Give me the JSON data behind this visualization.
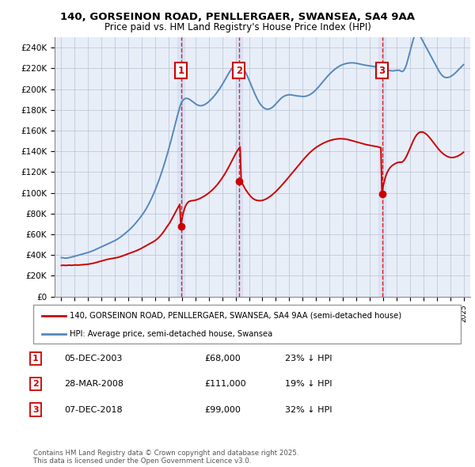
{
  "title_line1": "140, GORSEINON ROAD, PENLLERGAER, SWANSEA, SA4 9AA",
  "title_line2": "Price paid vs. HM Land Registry's House Price Index (HPI)",
  "ylim": [
    0,
    250000
  ],
  "yticks": [
    0,
    20000,
    40000,
    60000,
    80000,
    100000,
    120000,
    140000,
    160000,
    180000,
    200000,
    220000,
    240000
  ],
  "ytick_labels": [
    "£0",
    "£20K",
    "£40K",
    "£60K",
    "£80K",
    "£100K",
    "£120K",
    "£140K",
    "£160K",
    "£180K",
    "£200K",
    "£220K",
    "£240K"
  ],
  "background_color": "#ffffff",
  "plot_bg_color": "#e8eef8",
  "grid_color": "#c0c8d8",
  "red_line_color": "#cc0000",
  "blue_line_color": "#5588bb",
  "sale_marker_color": "#cc0000",
  "vline_color": "#dd2222",
  "sale_box_color": "#cc0000",
  "legend_label_red": "140, GORSEINON ROAD, PENLLERGAER, SWANSEA, SA4 9AA (semi-detached house)",
  "legend_label_blue": "HPI: Average price, semi-detached house, Swansea",
  "transactions": [
    {
      "num": 1,
      "date": "05-DEC-2003",
      "date_x": 2003.92,
      "price": 68000,
      "pct": "23%",
      "direction": "↓"
    },
    {
      "num": 2,
      "date": "28-MAR-2008",
      "date_x": 2008.25,
      "price": 111000,
      "pct": "19%",
      "direction": "↓"
    },
    {
      "num": 3,
      "date": "07-DEC-2018",
      "date_x": 2018.92,
      "price": 99000,
      "pct": "32%",
      "direction": "↓"
    }
  ],
  "footer_line1": "Contains HM Land Registry data © Crown copyright and database right 2025.",
  "footer_line2": "This data is licensed under the Open Government Licence v3.0.",
  "xtick_years": [
    1995,
    1996,
    1997,
    1998,
    1999,
    2000,
    2001,
    2002,
    2003,
    2004,
    2005,
    2006,
    2007,
    2008,
    2009,
    2010,
    2011,
    2012,
    2013,
    2014,
    2015,
    2016,
    2017,
    2018,
    2019,
    2020,
    2021,
    2022,
    2023,
    2024,
    2025
  ],
  "xlim": [
    1994.5,
    2025.5
  ],
  "year_start": 1995,
  "year_end": 2025
}
